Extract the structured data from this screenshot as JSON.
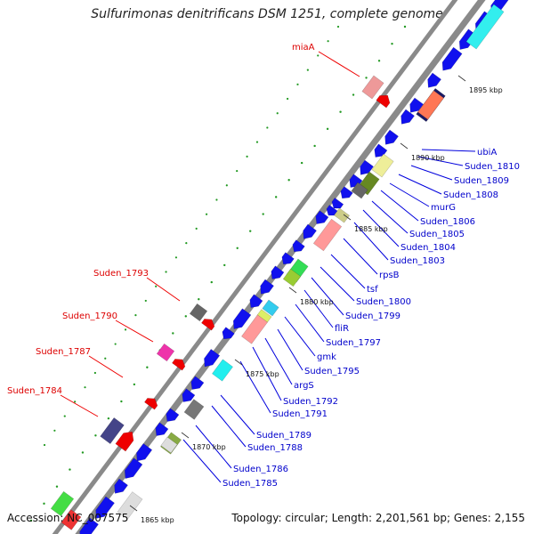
{
  "title": "Sulfurimonas denitrificans DSM 1251, complete genome",
  "accession": "Accession: NC_007575",
  "summary": "Topology: circular; Length: 2,201,561 bp; Genes: 2,155",
  "ticks": [
    "1895 kbp",
    "1890 kbp",
    "1885 kbp",
    "1880 kbp",
    "1875 kbp",
    "1870 kbp",
    "1865 kbp"
  ],
  "red_labels": [
    "miaA",
    "Suden_1793",
    "Suden_1790",
    "Suden_1787",
    "Suden_1784"
  ],
  "blue_labels": [
    "ubiA",
    "Suden_1810",
    "Suden_1809",
    "Suden_1808",
    "murG",
    "Suden_1806",
    "Suden_1805",
    "Suden_1804",
    "Suden_1803",
    "rpsB",
    "tsf",
    "Suden_1800",
    "Suden_1799",
    "fliR",
    "Suden_1797",
    "gmk",
    "Suden_1795",
    "argS",
    "Suden_1792",
    "Suden_1791",
    "Suden_1789",
    "Suden_1788",
    "Suden_1786",
    "Suden_1785"
  ],
  "colors": {
    "blue_gene": "#1010ee",
    "red_gene": "#ee0000",
    "backbone": "#888888",
    "label_red": "#dd0000",
    "label_blue": "#0000cc"
  }
}
